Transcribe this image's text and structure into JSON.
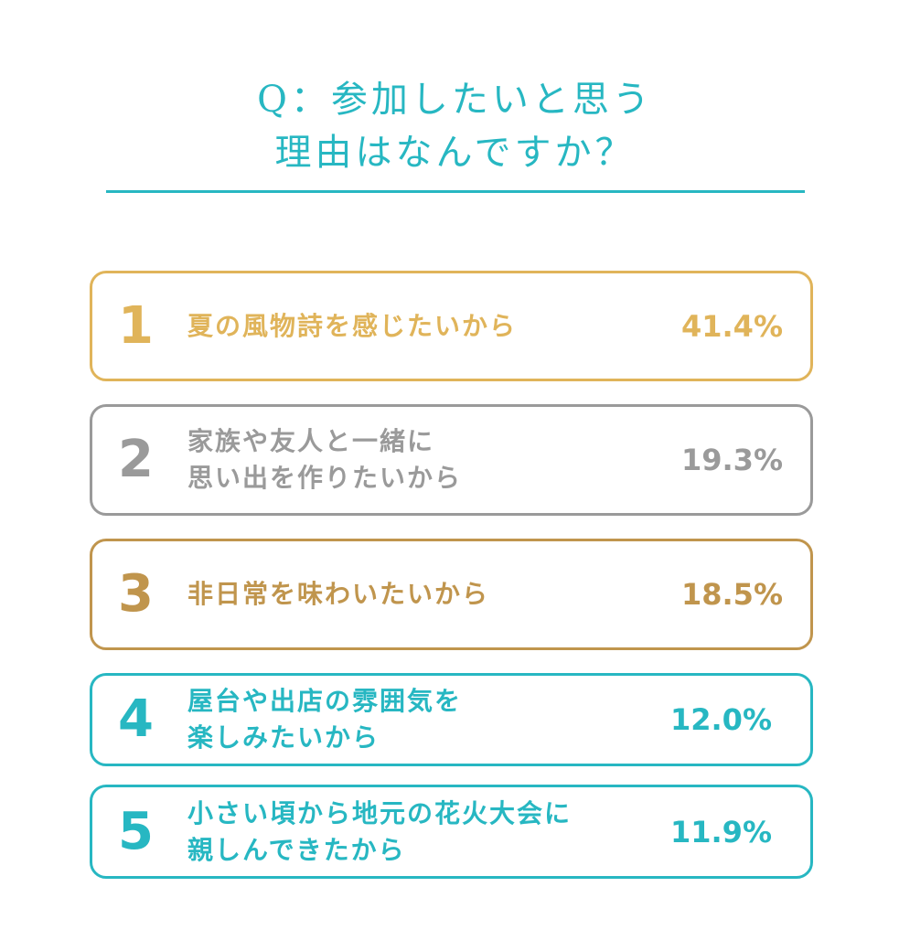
{
  "title_lines": [
    "Q：参加したいと思う",
    "理由はなんですか？"
  ],
  "chart_data": {
    "type": "table",
    "title": "Q：参加したいと思う理由はなんですか？",
    "rows": [
      {
        "rank": "1",
        "reason_lines": [
          "夏の風物詩を感じたいから"
        ],
        "value_label": "41.4%",
        "value": 41.4,
        "color": "#e0b45a"
      },
      {
        "rank": "2",
        "reason_lines": [
          "家族や友人と一緒に",
          "思い出を作りたいから"
        ],
        "value_label": "19.3%",
        "value": 19.3,
        "color": "#9a9a9a"
      },
      {
        "rank": "3",
        "reason_lines": [
          "非日常を味わいたいから"
        ],
        "value_label": "18.5%",
        "value": 18.5,
        "color": "#c0954d"
      },
      {
        "rank": "4",
        "reason_lines": [
          "屋台や出店の雰囲気を",
          "楽しみたいから"
        ],
        "value_label": "12.0%",
        "value": 12.0,
        "color": "#27b7c2"
      },
      {
        "rank": "5",
        "reason_lines": [
          "小さい頃から地元の花火大会に",
          "親しんできたから"
        ],
        "value_label": "11.9%",
        "value": 11.9,
        "color": "#27b7c2"
      }
    ]
  }
}
